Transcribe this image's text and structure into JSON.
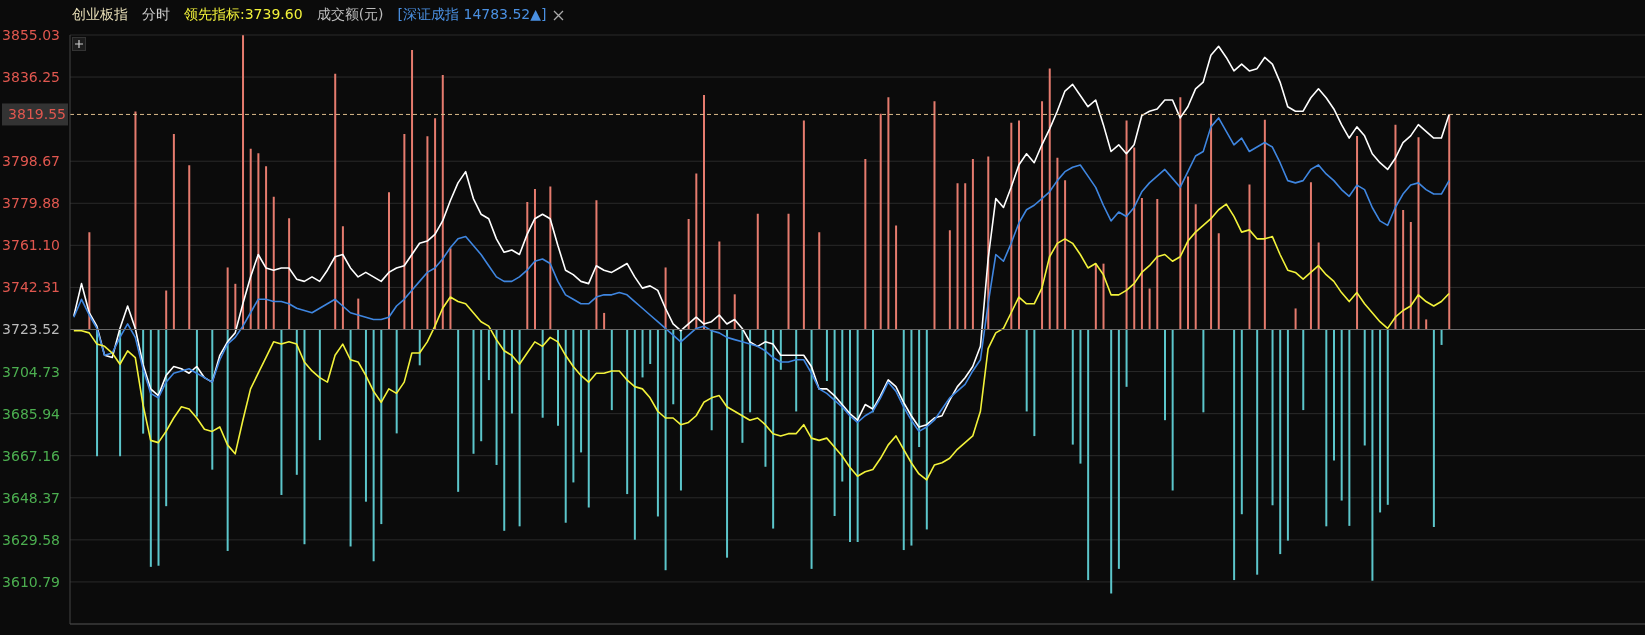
{
  "chart_data": {
    "type": "line",
    "title": "创业板指",
    "annotations": [
      "分时",
      "领先指标:3739.60",
      "成交额(元)",
      "[深证成指 14783.52▲]"
    ],
    "categories": [
      null,
      null,
      null,
      null,
      null,
      null,
      null,
      null,
      null,
      null,
      null,
      null,
      null,
      null,
      null,
      null,
      null,
      null,
      null,
      null,
      null,
      null,
      null,
      null,
      null,
      null,
      null,
      null,
      null,
      null,
      null,
      null,
      null,
      null,
      null,
      null,
      null,
      null,
      null,
      null,
      null,
      null,
      null,
      null,
      null,
      null,
      null,
      null,
      null,
      null,
      null,
      null,
      null,
      null,
      null,
      null,
      null,
      null,
      null,
      null,
      null,
      null,
      null,
      null,
      null,
      null,
      null,
      null,
      null,
      null,
      null,
      null,
      null,
      null,
      null,
      null,
      null,
      null,
      null,
      null,
      null,
      null,
      null,
      null,
      null,
      null,
      null,
      null,
      null,
      null,
      null,
      null,
      null,
      null,
      null,
      null,
      null,
      null,
      null,
      null,
      null,
      null,
      null,
      null,
      null,
      null,
      null,
      null,
      null,
      null,
      null,
      null,
      null,
      null,
      null,
      null,
      null,
      null,
      null,
      null,
      null,
      null,
      null,
      null,
      null,
      null,
      null,
      null,
      null,
      null,
      null,
      null,
      null,
      null,
      null,
      null,
      null,
      null,
      null,
      null,
      null,
      null,
      null,
      null,
      null,
      null,
      null,
      null,
      null,
      null,
      null,
      null,
      null,
      null,
      null,
      null,
      null,
      null,
      null,
      null,
      null,
      null,
      null,
      null,
      null,
      null,
      null,
      null,
      null,
      null,
      null,
      null,
      null,
      null,
      null,
      null,
      null,
      null,
      null,
      null,
      null,
      null,
      null,
      null,
      null,
      null,
      null,
      null,
      null,
      null,
      null,
      null,
      null,
      null,
      null,
      null,
      null,
      null,
      null,
      null,
      null,
      null,
      null,
      null,
      null
    ],
    "ylim": [
      3592.0,
      3855.03
    ],
    "yticks": [
      3610.79,
      3629.58,
      3648.37,
      3667.16,
      3685.94,
      3704.73,
      3723.52,
      3742.31,
      {
        "value": 3761.1,
        "label": "3761.10"
      },
      3779.88,
      3798.67,
      3836.25,
      3855.03
    ],
    "tick_labels": "y",
    "grid": "y",
    "ref_lines": [
      {
        "axis": "y",
        "value": 3819.55,
        "label": "3819.55",
        "color": "#d9b98a",
        "line_style": "dashed"
      },
      {
        "axis": "y",
        "value": 3723.52,
        "label": null,
        "color": "#6a6a6a",
        "line_style": "solid"
      }
    ],
    "series": [
      {
        "type": "bar",
        "color": "#e57b6e",
        "values": [
          null,
          null,
          43.4,
          null,
          null,
          null,
          null,
          null,
          97.3,
          null,
          null,
          null,
          17.4,
          87.3,
          null,
          73.3,
          null,
          null,
          null,
          null,
          27.7,
          20.4,
          131.4,
          80.7,
          78.7,
          72.9,
          59.3,
          null,
          49.7,
          null,
          null,
          null,
          null,
          null,
          114.2,
          46.1,
          null,
          13.8,
          null,
          null,
          null,
          61.3,
          null,
          87.3,
          124.8,
          null,
          86.3,
          94.3,
          113.6,
          36.3,
          null,
          null,
          null,
          null,
          null,
          null,
          null,
          null,
          null,
          56.9,
          62.7,
          null,
          63.9,
          null,
          null,
          null,
          null,
          null,
          57.7,
          7.4,
          null,
          null,
          null,
          null,
          null,
          null,
          null,
          27.7,
          null,
          null,
          49.3,
          69.7,
          104.7,
          null,
          39.3,
          null,
          15.7,
          null,
          null,
          51.7,
          null,
          null,
          null,
          51.7,
          null,
          93.3,
          null,
          43.4,
          null,
          null,
          null,
          null,
          null,
          76.1,
          null,
          96.3,
          103.7,
          46.4,
          null,
          null,
          null,
          null,
          101.9,
          null,
          44.3,
          65.3,
          65.3,
          76.1,
          null,
          77.3,
          null,
          null,
          92.3,
          93.3,
          null,
          null,
          101.9,
          116.6,
          76.7,
          66.7,
          null,
          null,
          null,
          29.4,
          29.4,
          null,
          null,
          93.3,
          81.3,
          58.7,
          18.3,
          58.3,
          null,
          null,
          103.7,
          68.3,
          55.9,
          null,
          96.3,
          43.0,
          null,
          null,
          null,
          64.7,
          null,
          93.7,
          null,
          null,
          null,
          9.4,
          null,
          65.7,
          38.9,
          null,
          null,
          null,
          null,
          86.4,
          null,
          null,
          null,
          null,
          91.4,
          53.4,
          48.0,
          85.9,
          4.5,
          null,
          null,
          95.9,
          null,
          null,
          null,
          null,
          null,
          null,
          null,
          null,
          null,
          null,
          null,
          null,
          null,
          null,
          null,
          null,
          null,
          null,
          null,
          null,
          null,
          null,
          null,
          null,
          null
        ],
        "base": [
          null,
          null,
          3723.52,
          null,
          null,
          null,
          null,
          null,
          3723.52,
          null,
          null,
          null,
          3723.52,
          3723.52,
          null,
          3723.52,
          null,
          null,
          null,
          null,
          3723.52,
          3723.52,
          3723.52,
          3723.52,
          3723.52,
          3723.52,
          3723.52,
          null,
          3723.52,
          null,
          null,
          null,
          null,
          null,
          3723.52,
          3723.52,
          null,
          3723.52,
          null,
          null,
          null,
          3723.52,
          null,
          3723.52,
          3723.52,
          null,
          3723.52,
          3723.52,
          3723.52,
          3723.52,
          null,
          null,
          null,
          null,
          null,
          null,
          null,
          null,
          null,
          3723.52,
          3723.52,
          null,
          3723.52,
          null,
          null,
          null,
          null,
          null,
          3723.52,
          3723.52,
          null,
          null,
          null,
          null,
          null,
          null,
          null,
          3723.52,
          null,
          null,
          3723.52,
          3723.52,
          3723.52,
          null,
          3723.52,
          null,
          3723.52,
          null,
          null,
          3723.52,
          null,
          null,
          null,
          3723.52,
          null,
          3723.52,
          null,
          3723.52,
          null,
          null,
          null,
          null,
          null,
          3723.52,
          null,
          3723.52,
          3723.52,
          3723.52,
          null,
          null,
          null,
          null,
          3723.52,
          null,
          3723.52,
          3723.52,
          3723.52,
          3723.52,
          null,
          3723.52,
          null,
          null,
          3723.52,
          3723.52,
          null,
          null,
          3723.52,
          3723.52,
          3723.52,
          3723.52,
          null,
          null,
          null,
          3723.52,
          3723.52,
          null,
          null,
          3723.52,
          3723.52,
          3723.52,
          3723.52,
          3723.52,
          null,
          null,
          3723.52,
          3723.52,
          3723.52,
          null,
          3723.52,
          3723.52,
          null,
          null,
          null,
          3723.52,
          null,
          3723.52,
          null,
          null,
          null,
          3723.52,
          null,
          3723.52,
          3723.52,
          null,
          null,
          null,
          null,
          3723.52,
          null,
          null,
          null,
          null,
          3723.52,
          3723.52,
          3723.52,
          3723.52,
          3723.52,
          null,
          null,
          3723.52,
          null,
          null,
          null,
          null,
          null,
          null,
          null,
          null,
          null,
          null,
          null,
          null,
          null,
          null,
          null,
          null,
          null,
          null,
          null,
          null,
          null,
          null,
          null,
          null,
          null
        ]
      },
      {
        "type": "bar",
        "color": "#5cc6cb",
        "values": [
          null,
          null,
          null,
          -56.6,
          null,
          null,
          -56.6,
          null,
          null,
          -46.5,
          -106.0,
          -105.5,
          -78.9,
          null,
          null,
          null,
          -38.9,
          null,
          -62.6,
          null,
          -98.9,
          null,
          null,
          null,
          null,
          null,
          null,
          -73.9,
          null,
          -64.9,
          -95.9,
          null,
          -49.4,
          null,
          null,
          null,
          -96.9,
          null,
          -76.9,
          -103.5,
          -86.9,
          null,
          -46.4,
          null,
          null,
          -16.0,
          null,
          null,
          null,
          null,
          -72.5,
          null,
          -55.5,
          -49.9,
          -22.6,
          -60.5,
          -89.9,
          -37.5,
          -87.9,
          null,
          null,
          -39.4,
          null,
          -43.0,
          -86.3,
          -68.3,
          -54.9,
          -79.5,
          null,
          null,
          -36.0,
          null,
          -73.5,
          -93.9,
          -21.4,
          -15.4,
          -83.5,
          -107.5,
          -33.4,
          -71.9,
          null,
          null,
          null,
          -45.0,
          null,
          -101.9,
          null,
          -50.6,
          -37.0,
          null,
          -61.3,
          -88.9,
          -18.0,
          null,
          -36.6,
          null,
          -106.9,
          null,
          -23.0,
          -83.3,
          -67.9,
          -94.9,
          -94.9,
          null,
          -37.0,
          null,
          null,
          null,
          -98.5,
          -96.5,
          -52.5,
          -89.3,
          null,
          null,
          null,
          null,
          null,
          null,
          null,
          null,
          null,
          null,
          null,
          null,
          -36.6,
          -47.6,
          null,
          null,
          null,
          null,
          -51.4,
          -59.9,
          -111.9,
          null,
          null,
          -117.9,
          -106.9,
          -25.6,
          null,
          null,
          null,
          null,
          -40.5,
          -71.9,
          null,
          null,
          null,
          -37.0,
          null,
          null,
          null,
          -111.9,
          -82.5,
          null,
          -109.5,
          null,
          -78.5,
          -100.3,
          -94.3,
          null,
          -36.0,
          null,
          null,
          -87.9,
          -58.5,
          -76.4,
          -87.7,
          null,
          -51.8,
          -112.2,
          -81.7,
          -78.3,
          null,
          null,
          null,
          null,
          null,
          -88.2,
          -6.9,
          null,
          null,
          null,
          null,
          null,
          null,
          null,
          null,
          null,
          null,
          null,
          null,
          null,
          null,
          null,
          null,
          null,
          null,
          null,
          null,
          null,
          null,
          null,
          null,
          null,
          null
        ],
        "base": [
          null,
          null,
          null,
          3723.52,
          null,
          null,
          3723.52,
          null,
          null,
          3723.52,
          3723.52,
          3723.52,
          3723.52,
          null,
          null,
          null,
          3723.52,
          null,
          3723.52,
          null,
          3723.52,
          null,
          null,
          null,
          null,
          null,
          null,
          3723.52,
          null,
          3723.52,
          3723.52,
          null,
          3723.52,
          null,
          null,
          null,
          3723.52,
          null,
          3723.52,
          3723.52,
          3723.52,
          null,
          3723.52,
          null,
          null,
          3723.52,
          null,
          null,
          null,
          null,
          3723.52,
          null,
          3723.52,
          3723.52,
          3723.52,
          3723.52,
          3723.52,
          3723.52,
          3723.52,
          null,
          null,
          3723.52,
          null,
          3723.52,
          3723.52,
          3723.52,
          3723.52,
          3723.52,
          null,
          null,
          3723.52,
          null,
          3723.52,
          3723.52,
          3723.52,
          3723.52,
          3723.52,
          3723.52,
          3723.52,
          3723.52,
          null,
          null,
          null,
          3723.52,
          null,
          3723.52,
          null,
          3723.52,
          3723.52,
          null,
          3723.52,
          3723.52,
          3723.52,
          null,
          3723.52,
          null,
          3723.52,
          null,
          3723.52,
          3723.52,
          3723.52,
          3723.52,
          3723.52,
          null,
          3723.52,
          null,
          null,
          null,
          3723.52,
          3723.52,
          3723.52,
          3723.52,
          null,
          null,
          null,
          null,
          null,
          null,
          null,
          null,
          null,
          null,
          null,
          null,
          3723.52,
          3723.52,
          null,
          null,
          null,
          null,
          3723.52,
          3723.52,
          3723.52,
          null,
          null,
          3723.52,
          3723.52,
          3723.52,
          null,
          null,
          null,
          null,
          3723.52,
          3723.52,
          null,
          null,
          null,
          3723.52,
          null,
          null,
          null,
          3723.52,
          3723.52,
          null,
          3723.52,
          null,
          3723.52,
          3723.52,
          3723.52,
          null,
          3723.52,
          null,
          null,
          3723.52,
          3723.52,
          3723.52,
          3723.52,
          null,
          3723.52,
          3723.52,
          3723.52,
          3723.52,
          null,
          null,
          null,
          null,
          null,
          3723.52,
          3723.52,
          null,
          null,
          null,
          null,
          null,
          null,
          null,
          null,
          null,
          null,
          null,
          null,
          null,
          null,
          null,
          null,
          null,
          null,
          null,
          null,
          null,
          null,
          null,
          null,
          null,
          null
        ]
      },
      {
        "color": "#ffffff",
        "values": [
          3729.6,
          3744,
          3731,
          3725,
          3712,
          3711,
          3724,
          3734,
          3724,
          3708,
          3697,
          3694,
          3703,
          3707,
          3706,
          3704,
          3707,
          3702,
          3700,
          3712,
          3718,
          3722,
          3735,
          3747,
          3757,
          3751,
          3750,
          3751,
          3751,
          3746,
          3745,
          3747,
          3745,
          3750,
          3756,
          3757,
          3751,
          3747,
          3749,
          3747,
          3745,
          3749,
          3751,
          3752,
          3757,
          3762,
          3763,
          3766,
          3772,
          3781,
          3789,
          3794,
          3782,
          3775,
          3773,
          3764,
          3758,
          3759,
          3757,
          3766,
          3773,
          3775,
          3773,
          3761,
          3750,
          3748,
          3745,
          3744,
          3752,
          3750,
          3749,
          3751,
          3753,
          3747,
          3742,
          3743,
          3741,
          3733,
          3726,
          3723,
          3726,
          3729,
          3726,
          3727,
          3730,
          3726,
          3728,
          3724,
          3718,
          3716,
          3718,
          3717,
          3712,
          3712,
          3712,
          3712,
          3707,
          3697,
          3697,
          3694,
          3690,
          3686,
          3683,
          3690,
          3688,
          3694,
          3701,
          3698,
          3691,
          3685,
          3680,
          3681,
          3684,
          3685,
          3692,
          3698,
          3702,
          3707,
          3716,
          3755,
          3782,
          3778,
          3787,
          3797,
          3802,
          3798,
          3806,
          3813,
          3821,
          3830,
          3833,
          3828,
          3823,
          3826,
          3815,
          3803,
          3806,
          3802,
          3806,
          3819,
          3821,
          3822,
          3826,
          3826,
          3818,
          3823,
          3831,
          3834,
          3846,
          3850,
          3845,
          3839,
          3842,
          3839,
          3840,
          3845,
          3842,
          3834,
          3823,
          3821,
          3821,
          3827,
          3831,
          3827,
          3822,
          3815,
          3809,
          3814,
          3810,
          3802,
          3798,
          3795,
          3800,
          3807,
          3810,
          3815,
          3812,
          3809,
          3809,
          3819.55,
          null,
          null,
          null,
          null,
          null,
          null,
          null,
          null,
          null,
          null,
          null,
          null,
          null,
          null,
          null,
          null,
          null,
          null,
          null,
          null,
          null,
          null,
          null,
          null,
          null
        ]
      },
      {
        "color": "#3f86e0",
        "values": [
          3729,
          3737,
          3730,
          3724,
          3712,
          3713,
          3720,
          3726,
          3720,
          3706,
          3695,
          3693,
          3700,
          3704,
          3705,
          3706,
          3704,
          3702,
          3700,
          3710,
          3717,
          3720,
          3725,
          3731,
          3737,
          3737,
          3736,
          3736,
          3735,
          3733,
          3732,
          3731,
          3733,
          3735,
          3737,
          3734,
          3731,
          3730,
          3729,
          3728,
          3728,
          3729,
          3734,
          3737,
          3741,
          3745,
          3749,
          3751,
          3755,
          3760,
          3764,
          3765,
          3761,
          3757,
          3752,
          3747,
          3745,
          3745,
          3747,
          3750,
          3754,
          3755,
          3753,
          3745,
          3739,
          3737,
          3735,
          3735,
          3738,
          3739,
          3739,
          3740,
          3739,
          3736,
          3733,
          3730,
          3727,
          3724,
          3721,
          3718,
          3721,
          3724,
          3725,
          3723,
          3722,
          3720,
          3719,
          3718,
          3717,
          3716,
          3714,
          3711,
          3709,
          3709,
          3710,
          3710,
          3704,
          3697,
          3695,
          3692,
          3689,
          3685,
          3682,
          3685,
          3687,
          3693,
          3700,
          3696,
          3689,
          3683,
          3678,
          3680,
          3683,
          3688,
          3693,
          3696,
          3699,
          3705,
          3710,
          3735,
          3757,
          3754,
          3762,
          3771,
          3777,
          3779,
          3782,
          3785,
          3790,
          3794,
          3796,
          3797,
          3792,
          3787,
          3779,
          3772,
          3776,
          3774,
          3778,
          3785,
          3789,
          3792,
          3795,
          3791,
          3787,
          3794,
          3801,
          3803,
          3814,
          3818,
          3812,
          3806,
          3809,
          3803,
          3805,
          3807,
          3805,
          3798,
          3790,
          3789,
          3790,
          3795,
          3797,
          3793,
          3790,
          3786,
          3783,
          3788,
          3786,
          3778,
          3772,
          3770,
          3778,
          3784,
          3788,
          3789,
          3786,
          3784,
          3784,
          3790,
          null,
          null,
          null,
          null,
          null,
          null,
          null,
          null,
          null,
          null,
          null,
          null,
          null,
          null,
          null,
          null,
          null,
          null,
          null,
          null,
          null,
          null,
          null,
          null,
          null
        ]
      },
      {
        "color": "#f2f23a",
        "values": [
          3723,
          3723,
          3722,
          3717,
          3716,
          3713,
          3708,
          3714,
          3711,
          3690,
          3674,
          3673,
          3678,
          3684,
          3689,
          3688,
          3684,
          3679,
          3678,
          3680,
          3672,
          3668,
          3683,
          3697,
          3704,
          3711,
          3718,
          3717,
          3718,
          3717,
          3709,
          3705,
          3702,
          3700,
          3712,
          3717,
          3710,
          3709,
          3703,
          3696,
          3691,
          3697,
          3695,
          3700,
          3713,
          3713,
          3718,
          3725,
          3733,
          3738,
          3736,
          3735,
          3731,
          3727,
          3725,
          3719,
          3714,
          3712,
          3708,
          3713,
          3718,
          3716,
          3720,
          3718,
          3712,
          3707,
          3703,
          3700,
          3704,
          3704,
          3705,
          3705,
          3701,
          3698,
          3697,
          3693,
          3687,
          3684,
          3684,
          3681,
          3682,
          3685,
          3691,
          3693,
          3694,
          3689,
          3687,
          3685,
          3683,
          3684,
          3681,
          3677,
          3676,
          3677,
          3677,
          3681,
          3675,
          3674,
          3675,
          3671,
          3667,
          3662,
          3658,
          3660,
          3661,
          3666,
          3672,
          3676,
          3670,
          3664,
          3659,
          3656.4,
          3663,
          3664,
          3666,
          3670,
          3673,
          3676,
          3687,
          3715,
          3722,
          3724,
          3731,
          3738,
          3735,
          3735,
          3742,
          3756,
          3762,
          3764,
          3762,
          3757,
          3751,
          3753,
          3748,
          3739,
          3739,
          3741,
          3744,
          3749,
          3752,
          3756,
          3757,
          3754,
          3756,
          3763,
          3767,
          3770,
          3773,
          3777,
          3779.5,
          3774,
          3767,
          3768,
          3764,
          3764,
          3765,
          3757,
          3750,
          3749,
          3746,
          3749,
          3752,
          3748,
          3745,
          3740,
          3736,
          3740,
          3735,
          3731,
          3727,
          3724,
          3729,
          3732,
          3734,
          3739,
          3736,
          3734,
          3736,
          3739.6,
          null,
          null,
          null,
          null,
          null,
          null,
          null,
          null,
          null,
          null,
          null,
          null,
          null,
          null,
          null,
          null,
          null,
          null,
          null,
          null,
          null,
          null,
          null,
          null,
          null
        ]
      }
    ]
  }
}
